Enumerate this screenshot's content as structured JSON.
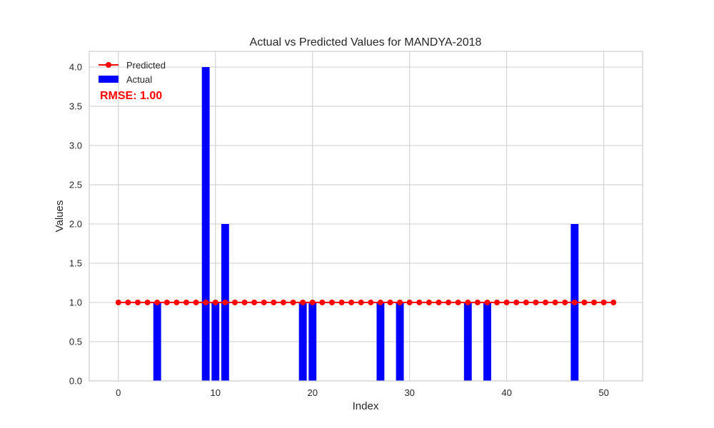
{
  "chart_data": {
    "type": "bar",
    "title": "Actual vs Predicted Values for MANDYA-2018",
    "xlabel": "Index",
    "ylabel": "Values",
    "xlim": [
      -3,
      54
    ],
    "ylim": [
      0,
      4.2
    ],
    "xticks": [
      0,
      10,
      20,
      30,
      40,
      50
    ],
    "yticks": [
      0.0,
      0.5,
      1.0,
      1.5,
      2.0,
      2.5,
      3.0,
      3.5,
      4.0
    ],
    "xtick_labels": [
      "0",
      "10",
      "20",
      "30",
      "40",
      "50"
    ],
    "ytick_labels": [
      "0.0",
      "0.5",
      "1.0",
      "1.5",
      "2.0",
      "2.5",
      "3.0",
      "3.5",
      "4.0"
    ],
    "grid": true,
    "legend_placement": "top-left",
    "series": [
      {
        "name": "Predicted",
        "kind": "line",
        "color": "#ff0000",
        "x": [
          0,
          1,
          2,
          3,
          4,
          5,
          6,
          7,
          8,
          9,
          10,
          11,
          12,
          13,
          14,
          15,
          16,
          17,
          18,
          19,
          20,
          21,
          22,
          23,
          24,
          25,
          26,
          27,
          28,
          29,
          30,
          31,
          32,
          33,
          34,
          35,
          36,
          37,
          38,
          39,
          40,
          41,
          42,
          43,
          44,
          45,
          46,
          47,
          48,
          49,
          50,
          51
        ],
        "values": [
          1,
          1,
          1,
          1,
          1,
          1,
          1,
          1,
          1,
          1,
          1,
          1,
          1,
          1,
          1,
          1,
          1,
          1,
          1,
          1,
          1,
          1,
          1,
          1,
          1,
          1,
          1,
          1,
          1,
          1,
          1,
          1,
          1,
          1,
          1,
          1,
          1,
          1,
          1,
          1,
          1,
          1,
          1,
          1,
          1,
          1,
          1,
          1,
          1,
          1,
          1,
          1
        ]
      },
      {
        "name": "Actual",
        "kind": "bar",
        "color": "#0000ff",
        "x": [
          4,
          9,
          10,
          11,
          19,
          20,
          27,
          29,
          36,
          38,
          47
        ],
        "values": [
          1,
          4,
          1,
          2,
          1,
          1,
          1,
          1,
          1,
          1,
          2
        ]
      }
    ],
    "annotation": "RMSE: 1.00"
  }
}
